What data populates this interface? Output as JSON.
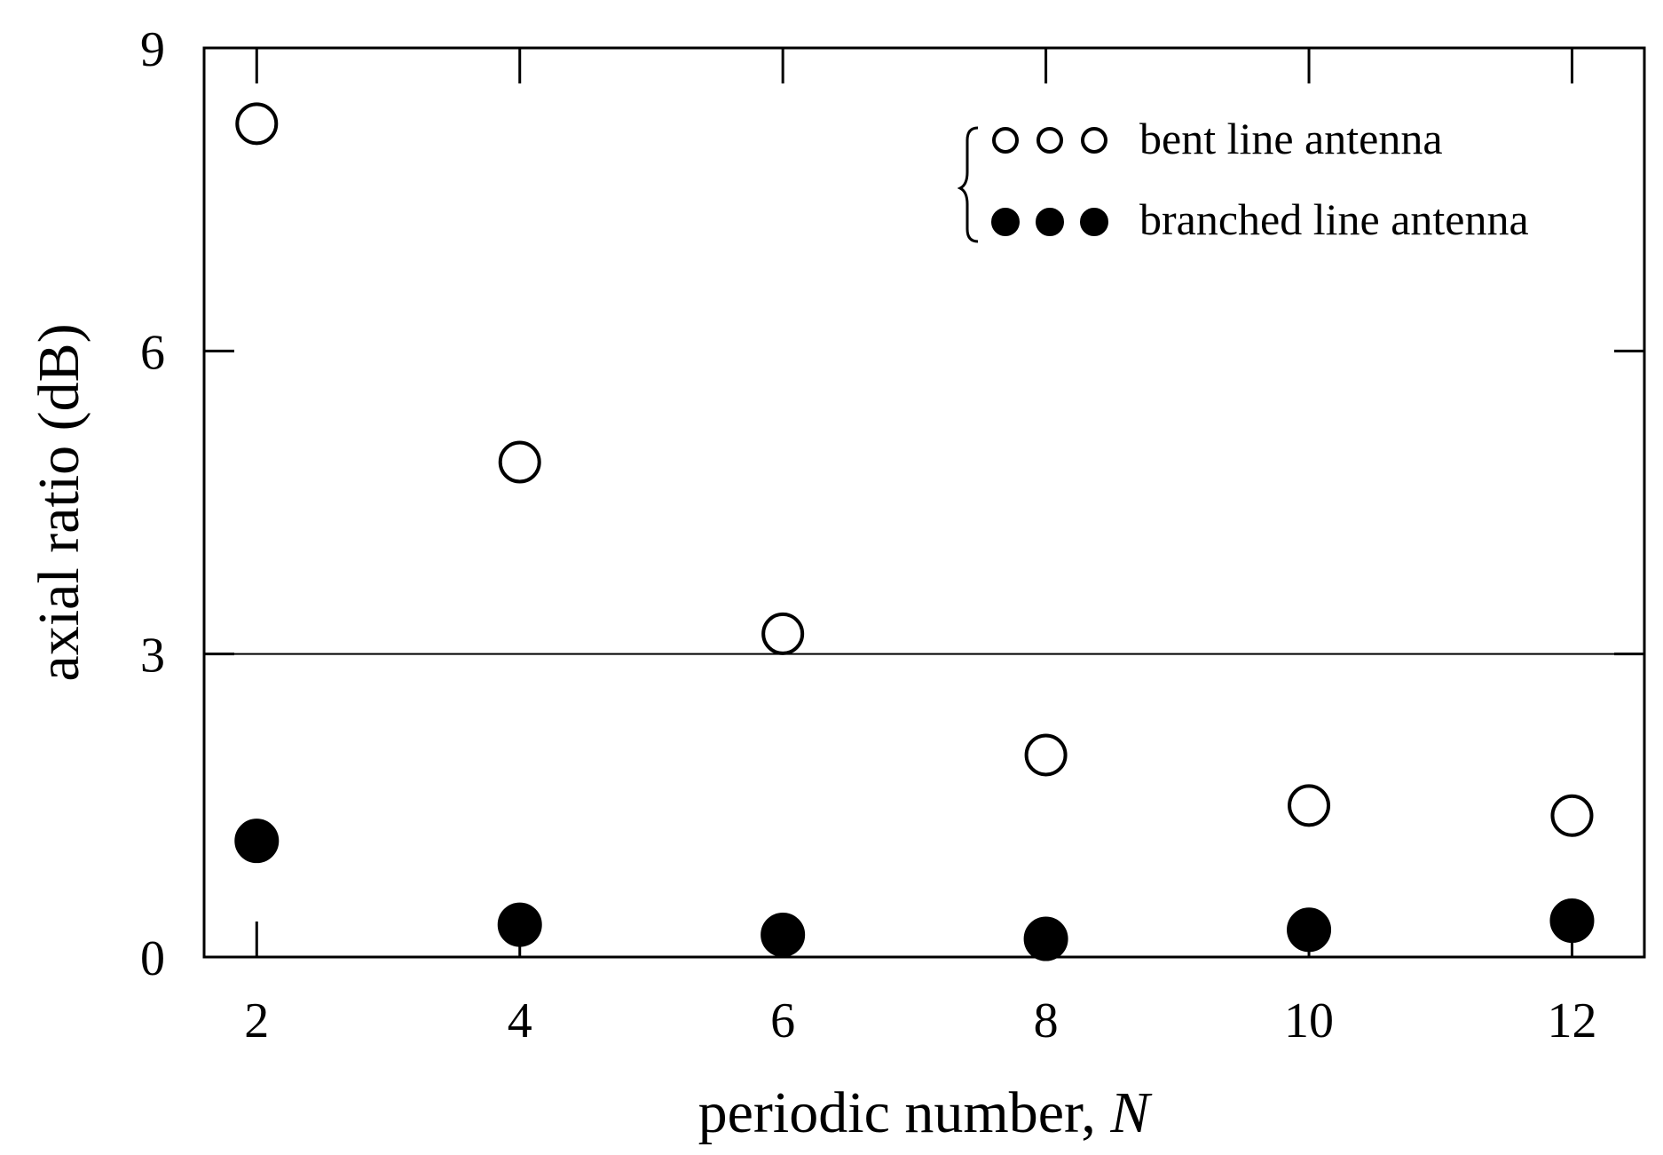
{
  "chart_data": {
    "type": "scatter",
    "xlabel": "periodic number, ",
    "xlabel_var": "N",
    "ylabel": "axial ratio (dB)",
    "xlim": [
      1.6,
      12.55
    ],
    "ylim": [
      0,
      9
    ],
    "x_ticks": [
      "2",
      "4",
      "6",
      "8",
      "10",
      "12"
    ],
    "y_ticks": [
      "0",
      "3",
      "6",
      "9"
    ],
    "x": [
      2,
      4,
      6,
      8,
      10,
      12
    ],
    "series": [
      {
        "name": "bent line antenna",
        "marker": "open-circle",
        "values": [
          8.25,
          4.9,
          3.2,
          2.0,
          1.5,
          1.4
        ]
      },
      {
        "name": "branched line antenna",
        "marker": "filled-circle",
        "values": [
          1.15,
          0.32,
          0.22,
          0.18,
          0.27,
          0.36
        ]
      }
    ],
    "reference_line": {
      "y": 3
    },
    "legend_position": "top-right",
    "grid": false,
    "colors": {
      "axis": "#000000",
      "marker": "#000000",
      "background": "#ffffff"
    }
  }
}
